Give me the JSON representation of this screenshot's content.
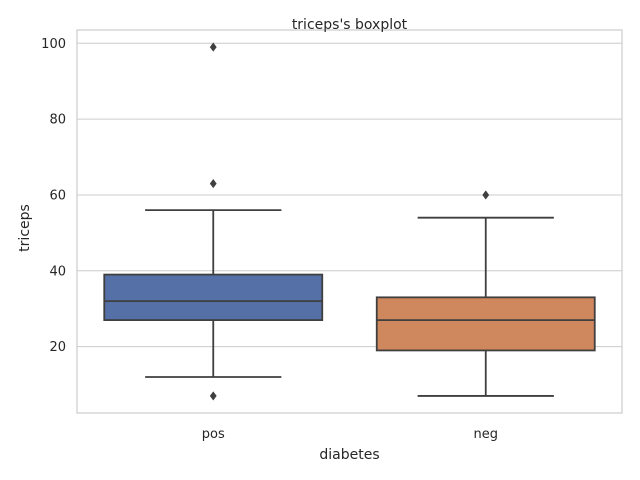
{
  "chart_data": {
    "type": "boxplot",
    "title": "triceps's boxplot",
    "xlabel": "diabetes",
    "ylabel": "triceps",
    "ylim": [
      2.5,
      103.5
    ],
    "yticks": [
      20,
      40,
      60,
      80,
      100
    ],
    "grid": true,
    "categories": [
      "pos",
      "neg"
    ],
    "colors": [
      "#5470a6",
      "#cf875d"
    ],
    "boxes": [
      {
        "category": "pos",
        "whisker_low": 12,
        "q1": 27,
        "median": 32,
        "q3": 39,
        "whisker_high": 56,
        "outliers": [
          7,
          63,
          99
        ]
      },
      {
        "category": "neg",
        "whisker_low": 7,
        "q1": 19,
        "median": 27,
        "q3": 33,
        "whisker_high": 54,
        "outliers": [
          60
        ]
      }
    ]
  }
}
